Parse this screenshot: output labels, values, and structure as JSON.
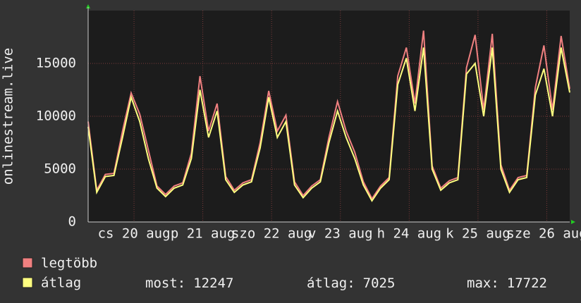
{
  "chart_data": {
    "type": "line",
    "y_label": "onlinestream.live",
    "x": [
      0,
      3,
      6,
      9,
      12,
      15,
      18,
      21,
      24,
      27,
      30,
      33,
      36,
      39,
      42,
      45,
      48,
      51,
      54,
      57,
      60,
      63,
      66,
      69,
      72,
      75,
      78,
      81,
      84,
      87,
      90,
      93,
      96,
      99,
      102,
      105,
      108,
      111,
      114,
      117,
      120,
      123,
      126,
      129,
      132,
      135,
      138,
      141,
      144,
      147,
      150,
      153,
      156,
      159,
      162,
      165,
      168
    ],
    "xlim": [
      0,
      168
    ],
    "xticks": [
      {
        "value": 16,
        "label": "cs 20 aug"
      },
      {
        "value": 40,
        "label": "p 21 aug"
      },
      {
        "value": 64,
        "label": "szo 22 aug"
      },
      {
        "value": 88,
        "label": "v 23 aug"
      },
      {
        "value": 112,
        "label": "h 24 aug"
      },
      {
        "value": 136,
        "label": "k 25 aug"
      },
      {
        "value": 160,
        "label": "sze 26 aug"
      }
    ],
    "ylim": [
      0,
      20000
    ],
    "yticks": [
      0,
      5000,
      10000,
      15000
    ],
    "grid": true,
    "series": [
      {
        "name": "legtöbb",
        "color": "#f08080",
        "values": [
          9500,
          3000,
          4500,
          4600,
          8600,
          12200,
          10200,
          6800,
          3400,
          2600,
          3400,
          3700,
          6500,
          13800,
          8600,
          11200,
          4300,
          3000,
          3700,
          4000,
          7500,
          12400,
          8600,
          10100,
          3800,
          2500,
          3400,
          4000,
          8000,
          11400,
          8600,
          6600,
          3800,
          2200,
          3400,
          4200,
          13800,
          16500,
          11200,
          18100,
          5300,
          3200,
          3900,
          4200,
          14600,
          17700,
          10600,
          17800,
          5400,
          3000,
          4200,
          4400,
          12700,
          16700,
          10600,
          17600,
          12600
        ]
      },
      {
        "name": "átlag",
        "color": "#ffff80",
        "values": [
          9000,
          2800,
          4300,
          4400,
          8000,
          11800,
          9500,
          6000,
          3200,
          2400,
          3200,
          3500,
          6000,
          12500,
          8000,
          10500,
          4000,
          2800,
          3500,
          3800,
          7000,
          11800,
          8000,
          9500,
          3500,
          2300,
          3200,
          3800,
          7500,
          10500,
          8000,
          6000,
          3500,
          2000,
          3200,
          4000,
          13000,
          15500,
          10500,
          16500,
          5000,
          3000,
          3700,
          4000,
          14000,
          15000,
          10000,
          16500,
          5000,
          2800,
          4000,
          4200,
          12000,
          14500,
          10000,
          16500,
          12247
        ]
      }
    ],
    "stats": [
      {
        "label": "most:",
        "value": 12247
      },
      {
        "label": "átlag:",
        "value": 7025
      },
      {
        "label": "max:",
        "value": 17722
      }
    ]
  }
}
